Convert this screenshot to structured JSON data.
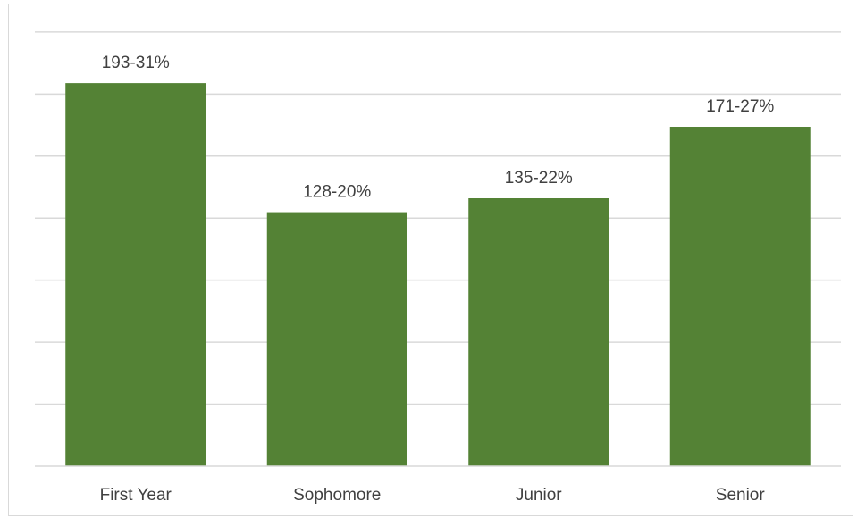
{
  "chart_data": {
    "type": "bar",
    "categories": [
      "First Year",
      "Sophomore",
      "Junior",
      "Senior"
    ],
    "values": [
      193,
      128,
      135,
      171
    ],
    "data_labels": [
      "193-31%",
      "128-20%",
      "135-22%",
      "171-27%"
    ],
    "title": "",
    "xlabel": "",
    "ylabel": "",
    "ylim": [
      0,
      225
    ],
    "grid": true,
    "bar_color": "#548235",
    "gridline_color": "#d9d9d9"
  }
}
